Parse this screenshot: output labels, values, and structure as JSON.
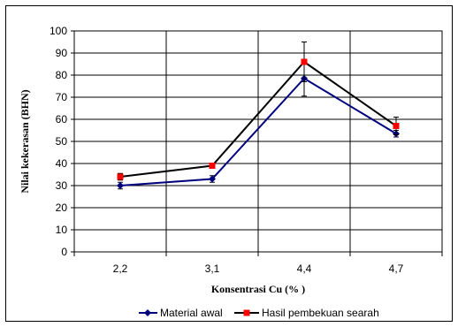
{
  "chart_data": {
    "type": "line",
    "categories": [
      "2,2",
      "3,1",
      "4,4",
      "4,7"
    ],
    "xlabel": "Konsentrasi Cu (% )",
    "ylabel": "Nilai kekerasan (BHN)",
    "ylim": [
      0,
      100
    ],
    "yticks": [
      0,
      10,
      20,
      30,
      40,
      50,
      60,
      70,
      80,
      90,
      100
    ],
    "grid": true,
    "legend_position": "bottom",
    "series": [
      {
        "name": "Material awal",
        "values": [
          30,
          33,
          78.5,
          53.5
        ],
        "error": [
          1.5,
          1.5,
          8,
          1.5
        ],
        "color": "#00007f",
        "marker": "diamond"
      },
      {
        "name": "Hasil pembekuan searah",
        "values": [
          34,
          39,
          86,
          57
        ],
        "error": [
          1.5,
          1,
          9,
          4
        ],
        "color": "#ff0000",
        "marker": "square"
      }
    ]
  }
}
